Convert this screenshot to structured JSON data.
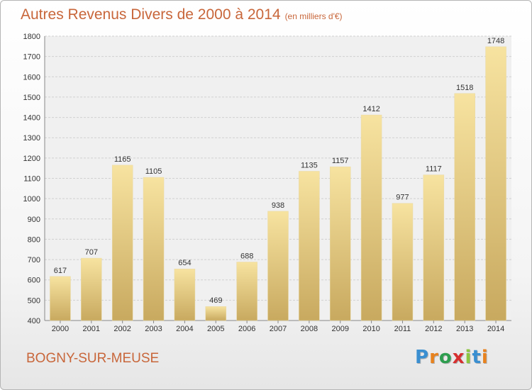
{
  "chart_data": {
    "type": "bar",
    "title": "Autres Revenus Divers de 2000 à 2014",
    "unit": "(en milliers d'€)",
    "categories": [
      "2000",
      "2001",
      "2002",
      "2003",
      "2004",
      "2005",
      "2006",
      "2007",
      "2008",
      "2009",
      "2010",
      "2011",
      "2012",
      "2013",
      "2014"
    ],
    "values": [
      617,
      707,
      1165,
      1105,
      654,
      469,
      688,
      938,
      1135,
      1157,
      1412,
      977,
      1117,
      1518,
      1748
    ],
    "ylim": [
      400,
      1800
    ],
    "yticks": [
      400,
      500,
      600,
      700,
      800,
      900,
      1000,
      1100,
      1200,
      1300,
      1400,
      1500,
      1600,
      1700,
      1800
    ],
    "grid": true,
    "colors": {
      "bar_light": "#f7e3a0",
      "bar_dark": "#c8a95f",
      "title": "#c8663a"
    }
  },
  "place_name": "BOGNY-SUR-MEUSE",
  "logo": {
    "letters": [
      "P",
      "r",
      "o",
      "x",
      "i",
      "t",
      "i"
    ],
    "colors": [
      "#3a8fd1",
      "#e8821e",
      "#2e9e4f",
      "#d62f2f",
      "#8cc63f",
      "#3a8fd1",
      "#e8821e"
    ]
  }
}
